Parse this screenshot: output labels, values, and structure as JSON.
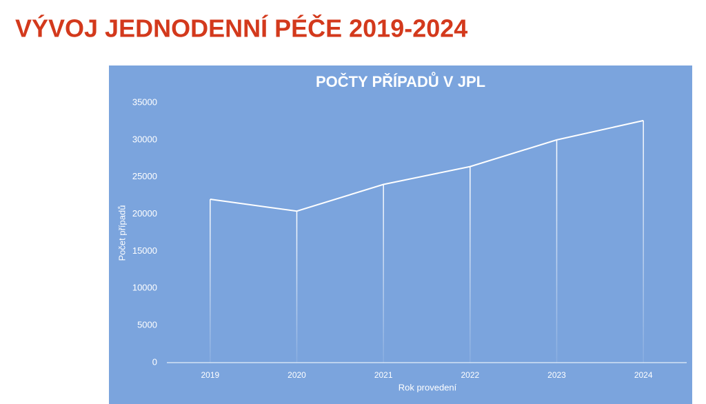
{
  "slide_title": "VÝVOJ JEDNODENNÍ PÉČE 2019-2024",
  "chart_data": {
    "type": "line",
    "title": "POČTY PŘÍPADŮ V JPL",
    "x_label": "Rok provedení",
    "y_label": "Počet případů",
    "categories": [
      "2019",
      "2020",
      "2021",
      "2022",
      "2023",
      "2024"
    ],
    "values": [
      22000,
      20400,
      24000,
      26400,
      30000,
      32600
    ],
    "color": "#ffffff",
    "drop_lines": true,
    "ylim": [
      0,
      35000
    ],
    "yticks": [
      0,
      5000,
      10000,
      15000,
      20000,
      25000,
      30000,
      35000
    ]
  }
}
